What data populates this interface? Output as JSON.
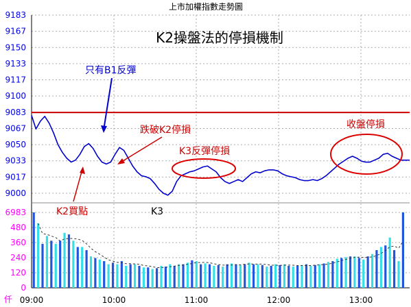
{
  "page_title": "上市加權指數走勢圖",
  "chart_data": {
    "type": "line",
    "title": "K2操盤法的停損機制",
    "price_axis": {
      "ticks": [
        "9183",
        "9167",
        "9150",
        "9133",
        "9117",
        "9100",
        "9083",
        "9067",
        "9050",
        "9033",
        "9017",
        "9000"
      ],
      "ylim": [
        9000,
        9183
      ]
    },
    "volume_axis": {
      "ticks": [
        "6983",
        "480",
        "360",
        "240",
        "120",
        "0"
      ],
      "unit": "仟"
    },
    "time_ticks": [
      "09:00",
      "10:00",
      "11:00",
      "12:00",
      "13:00"
    ],
    "reference_line": {
      "value": 9083,
      "color": "#cc0000"
    },
    "series": [
      {
        "values": [
          [
            0,
            9080
          ],
          [
            2,
            9066
          ],
          [
            4,
            9074
          ],
          [
            6,
            9079
          ],
          [
            8,
            9072
          ],
          [
            10,
            9062
          ],
          [
            12,
            9050
          ],
          [
            14,
            9042
          ],
          [
            16,
            9036
          ],
          [
            18,
            9032
          ],
          [
            20,
            9034
          ],
          [
            22,
            9040
          ],
          [
            24,
            9048
          ],
          [
            26,
            9051
          ],
          [
            28,
            9046
          ],
          [
            30,
            9038
          ],
          [
            32,
            9032
          ],
          [
            34,
            9030
          ],
          [
            36,
            9032
          ],
          [
            38,
            9040
          ],
          [
            40,
            9047
          ],
          [
            42,
            9044
          ],
          [
            44,
            9036
          ],
          [
            46,
            9028
          ],
          [
            48,
            9022
          ],
          [
            50,
            9018
          ],
          [
            52,
            9017
          ],
          [
            54,
            9015
          ],
          [
            56,
            9010
          ],
          [
            58,
            9004
          ],
          [
            60,
            9000
          ],
          [
            62,
            8998
          ],
          [
            64,
            9002
          ],
          [
            66,
            9012
          ],
          [
            68,
            9018
          ],
          [
            70,
            9020
          ],
          [
            72,
            9022
          ],
          [
            74,
            9023
          ],
          [
            76,
            9025
          ],
          [
            78,
            9027
          ],
          [
            80,
            9028
          ],
          [
            82,
            9025
          ],
          [
            84,
            9022
          ],
          [
            86,
            9016
          ],
          [
            88,
            9012
          ],
          [
            90,
            9010
          ],
          [
            92,
            9012
          ],
          [
            94,
            9014
          ],
          [
            96,
            9012
          ],
          [
            98,
            9016
          ],
          [
            100,
            9020
          ],
          [
            102,
            9022
          ],
          [
            104,
            9021
          ],
          [
            106,
            9023
          ],
          [
            108,
            9024
          ],
          [
            110,
            9024
          ],
          [
            112,
            9023
          ],
          [
            114,
            9020
          ],
          [
            116,
            9018
          ],
          [
            118,
            9017
          ],
          [
            120,
            9016
          ],
          [
            122,
            9014
          ],
          [
            124,
            9013
          ],
          [
            126,
            9013
          ],
          [
            128,
            9014
          ],
          [
            130,
            9013
          ],
          [
            132,
            9015
          ],
          [
            134,
            9018
          ],
          [
            136,
            9022
          ],
          [
            138,
            9026
          ],
          [
            140,
            9030
          ],
          [
            142,
            9033
          ],
          [
            144,
            9036
          ],
          [
            146,
            9038
          ],
          [
            148,
            9036
          ],
          [
            150,
            9033
          ],
          [
            152,
            9032
          ],
          [
            154,
            9032
          ],
          [
            156,
            9034
          ],
          [
            158,
            9036
          ],
          [
            160,
            9040
          ],
          [
            162,
            9041
          ],
          [
            164,
            9038
          ],
          [
            166,
            9036
          ],
          [
            168,
            9034
          ],
          [
            170,
            9034
          ],
          [
            172,
            9034
          ]
        ],
        "color": "#0000cc"
      }
    ],
    "volume": [
      [
        1,
        6983
      ],
      [
        3,
        410
      ],
      [
        5,
        280
      ],
      [
        7,
        330
      ],
      [
        9,
        300
      ],
      [
        11,
        280
      ],
      [
        13,
        300
      ],
      [
        15,
        350
      ],
      [
        17,
        340
      ],
      [
        19,
        300
      ],
      [
        21,
        260
      ],
      [
        23,
        260
      ],
      [
        25,
        240
      ],
      [
        27,
        200
      ],
      [
        29,
        190
      ],
      [
        31,
        180
      ],
      [
        33,
        170
      ],
      [
        35,
        150
      ],
      [
        37,
        160
      ],
      [
        39,
        150
      ],
      [
        41,
        170
      ],
      [
        43,
        140
      ],
      [
        45,
        150
      ],
      [
        47,
        150
      ],
      [
        49,
        140
      ],
      [
        51,
        130
      ],
      [
        53,
        130
      ],
      [
        55,
        120
      ],
      [
        57,
        125
      ],
      [
        59,
        140
      ],
      [
        61,
        135
      ],
      [
        63,
        150
      ],
      [
        65,
        140
      ],
      [
        67,
        150
      ],
      [
        69,
        150
      ],
      [
        71,
        160
      ],
      [
        73,
        175
      ],
      [
        75,
        170
      ],
      [
        77,
        150
      ],
      [
        79,
        155
      ],
      [
        81,
        150
      ],
      [
        83,
        140
      ],
      [
        85,
        145
      ],
      [
        87,
        135
      ],
      [
        89,
        150
      ],
      [
        91,
        155
      ],
      [
        93,
        150
      ],
      [
        95,
        145
      ],
      [
        97,
        150
      ],
      [
        99,
        160
      ],
      [
        101,
        150
      ],
      [
        103,
        150
      ],
      [
        105,
        145
      ],
      [
        107,
        135
      ],
      [
        109,
        140
      ],
      [
        111,
        150
      ],
      [
        113,
        145
      ],
      [
        115,
        150
      ],
      [
        117,
        140
      ],
      [
        119,
        135
      ],
      [
        121,
        140
      ],
      [
        123,
        145
      ],
      [
        125,
        150
      ],
      [
        127,
        140
      ],
      [
        129,
        145
      ],
      [
        131,
        150
      ],
      [
        133,
        155
      ],
      [
        135,
        165
      ],
      [
        137,
        170
      ],
      [
        139,
        185
      ],
      [
        141,
        190
      ],
      [
        143,
        195
      ],
      [
        145,
        200
      ],
      [
        147,
        200
      ],
      [
        149,
        190
      ],
      [
        151,
        180
      ],
      [
        153,
        200
      ],
      [
        155,
        215
      ],
      [
        157,
        240
      ],
      [
        159,
        260
      ],
      [
        161,
        270
      ],
      [
        163,
        320
      ],
      [
        165,
        240
      ],
      [
        167,
        170
      ],
      [
        169,
        4800
      ]
    ],
    "annotations": [
      {
        "text": "只有B1反彈",
        "color": "#0000cc"
      },
      {
        "text": "跌破K2停損",
        "color": "#cc0000"
      },
      {
        "text": "K3反彈停損",
        "color": "#cc0000"
      },
      {
        "text": "收盤停損",
        "color": "#cc0000"
      },
      {
        "text": "K2買點",
        "color": "#cc0000"
      },
      {
        "text": "K3",
        "color": "#000000"
      }
    ]
  },
  "colors": {
    "grid": "#aaaaaa",
    "price_label": "#0000ee",
    "volume_label": "#ff00ff",
    "volume_bar_a": "#2255dd",
    "volume_bar_b": "#33e0e8"
  }
}
